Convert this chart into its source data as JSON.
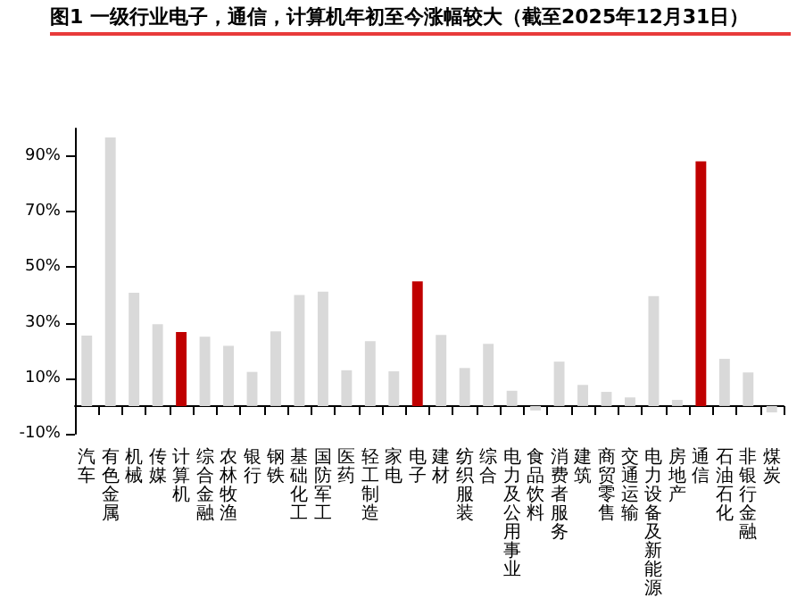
{
  "chart_data": {
    "type": "bar",
    "title": "图1 一级行业电子，通信，计算机年初至今涨幅较大（截至2025年12月31日）",
    "categories": [
      "汽车",
      "有色金属",
      "机械",
      "传媒",
      "计算机",
      "综合金融",
      "农林牧渔",
      "银行",
      "钢铁",
      "基础化工",
      "国防军工",
      "医药",
      "轻工制造",
      "家电",
      "电子",
      "建材",
      "纺织服装",
      "综合",
      "电力及公用事业",
      "食品饮料",
      "消费者服务",
      "建筑",
      "商贸零售",
      "交通运输",
      "电力设备及新能源",
      "房地产",
      "通信",
      "石油石化",
      "非银行金融",
      "煤炭"
    ],
    "values": [
      25.4,
      96.8,
      40.8,
      29.5,
      26.7,
      25,
      21.7,
      12.3,
      26.9,
      40,
      41.2,
      12.9,
      23.4,
      12.5,
      44.9,
      25.6,
      13.7,
      22.4,
      5.5,
      -1.6,
      16,
      7.6,
      5.1,
      3.1,
      39.6,
      2.2,
      88.2,
      17,
      12.1,
      -2.3
    ],
    "colors": [
      "#d9d9d9",
      "#d9d9d9",
      "#d9d9d9",
      "#d9d9d9",
      "#c00000",
      "#d9d9d9",
      "#d9d9d9",
      "#d9d9d9",
      "#d9d9d9",
      "#d9d9d9",
      "#d9d9d9",
      "#d9d9d9",
      "#d9d9d9",
      "#d9d9d9",
      "#c00000",
      "#d9d9d9",
      "#d9d9d9",
      "#d9d9d9",
      "#d9d9d9",
      "#d9d9d9",
      "#d9d9d9",
      "#d9d9d9",
      "#d9d9d9",
      "#d9d9d9",
      "#d9d9d9",
      "#d9d9d9",
      "#c00000",
      "#d9d9d9",
      "#d9d9d9",
      "#d9d9d9"
    ],
    "ylim": [
      -10,
      100
    ],
    "yticks": [
      {
        "value": -10,
        "label": "-10%"
      },
      {
        "value": 10,
        "label": "10%"
      },
      {
        "value": 30,
        "label": "30%"
      },
      {
        "value": 50,
        "label": "50%"
      },
      {
        "value": 70,
        "label": "70%"
      },
      {
        "value": 90,
        "label": "90%"
      }
    ],
    "grid": false
  }
}
